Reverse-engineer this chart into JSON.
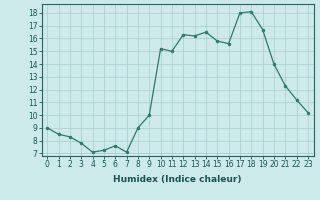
{
  "x": [
    0,
    1,
    2,
    3,
    4,
    5,
    6,
    7,
    8,
    9,
    10,
    11,
    12,
    13,
    14,
    15,
    16,
    17,
    18,
    19,
    20,
    21,
    22,
    23
  ],
  "y": [
    9.0,
    8.5,
    8.3,
    7.8,
    7.1,
    7.25,
    7.6,
    7.1,
    9.0,
    10.0,
    15.2,
    15.0,
    16.3,
    16.2,
    16.5,
    15.8,
    15.6,
    18.0,
    18.1,
    16.7,
    14.0,
    12.3,
    11.2,
    10.2
  ],
  "xlabel": "Humidex (Indice chaleur)",
  "xlim": [
    -0.5,
    23.5
  ],
  "ylim": [
    6.8,
    18.7
  ],
  "yticks": [
    7,
    8,
    9,
    10,
    11,
    12,
    13,
    14,
    15,
    16,
    17,
    18
  ],
  "xticks": [
    0,
    1,
    2,
    3,
    4,
    5,
    6,
    7,
    8,
    9,
    10,
    11,
    12,
    13,
    14,
    15,
    16,
    17,
    18,
    19,
    20,
    21,
    22,
    23
  ],
  "line_color": "#2d7a6a",
  "bg_color": "#cceaea",
  "grid_color": "#aacccc",
  "tick_fontsize": 5.5,
  "label_fontsize": 6.5
}
